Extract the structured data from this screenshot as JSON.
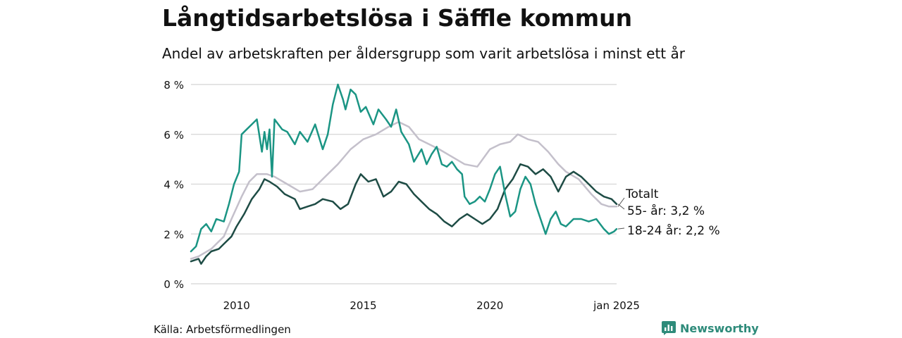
{
  "title": "Långtidsarbetslösa i Säffle kommun",
  "subtitle": "Andel av arbetskraften per åldersgrupp som varit arbetslösa i minst ett år",
  "source": "Källa: Arbetsförmedlingen",
  "brand": {
    "name": "Newsworthy",
    "icon": "newsworthy-logo-icon",
    "color": "#2e8b7a"
  },
  "chart_data": {
    "type": "line",
    "title": "Långtidsarbetslösa i Säffle kommun",
    "xlabel": "",
    "ylabel": "",
    "xlim": [
      2008.2,
      2025.0
    ],
    "ylim": [
      0,
      8
    ],
    "yticks": [
      {
        "value": 0,
        "label": "0 %"
      },
      {
        "value": 2,
        "label": "2 %"
      },
      {
        "value": 4,
        "label": "4 %"
      },
      {
        "value": 6,
        "label": "6 %"
      },
      {
        "value": 8,
        "label": "8 %"
      }
    ],
    "xticks": [
      {
        "value": 2010,
        "label": "2010"
      },
      {
        "value": 2015,
        "label": "2015"
      },
      {
        "value": 2020,
        "label": "2020"
      },
      {
        "value": 2025,
        "label": "jan 2025"
      }
    ],
    "grid": true,
    "series": [
      {
        "name": "Totalt",
        "label": "Totalt",
        "color": "#c4c0cb",
        "points": [
          [
            2008.2,
            1.0
          ],
          [
            2008.5,
            1.1
          ],
          [
            2009.0,
            1.4
          ],
          [
            2009.5,
            1.9
          ],
          [
            2009.8,
            2.6
          ],
          [
            2010.2,
            3.5
          ],
          [
            2010.5,
            4.1
          ],
          [
            2010.8,
            4.4
          ],
          [
            2011.2,
            4.4
          ],
          [
            2011.5,
            4.3
          ],
          [
            2012.0,
            4.0
          ],
          [
            2012.5,
            3.7
          ],
          [
            2013.0,
            3.8
          ],
          [
            2013.5,
            4.3
          ],
          [
            2014.0,
            4.8
          ],
          [
            2014.5,
            5.4
          ],
          [
            2015.0,
            5.8
          ],
          [
            2015.5,
            6.0
          ],
          [
            2016.0,
            6.3
          ],
          [
            2016.4,
            6.5
          ],
          [
            2016.8,
            6.3
          ],
          [
            2017.2,
            5.8
          ],
          [
            2017.6,
            5.6
          ],
          [
            2018.0,
            5.4
          ],
          [
            2018.5,
            5.1
          ],
          [
            2019.0,
            4.8
          ],
          [
            2019.5,
            4.7
          ],
          [
            2020.0,
            5.4
          ],
          [
            2020.4,
            5.6
          ],
          [
            2020.8,
            5.7
          ],
          [
            2021.1,
            6.0
          ],
          [
            2021.5,
            5.8
          ],
          [
            2021.9,
            5.7
          ],
          [
            2022.3,
            5.3
          ],
          [
            2022.7,
            4.8
          ],
          [
            2023.0,
            4.5
          ],
          [
            2023.5,
            4.2
          ],
          [
            2024.0,
            3.6
          ],
          [
            2024.4,
            3.2
          ],
          [
            2024.7,
            3.1
          ],
          [
            2025.0,
            3.1
          ]
        ]
      },
      {
        "name": "55- år",
        "label": "55- år: 3,2 %",
        "color": "#1e4c45",
        "points": [
          [
            2008.2,
            0.9
          ],
          [
            2008.5,
            1.0
          ],
          [
            2008.6,
            0.8
          ],
          [
            2008.8,
            1.1
          ],
          [
            2009.0,
            1.3
          ],
          [
            2009.3,
            1.4
          ],
          [
            2009.5,
            1.6
          ],
          [
            2009.8,
            1.9
          ],
          [
            2010.0,
            2.3
          ],
          [
            2010.3,
            2.8
          ],
          [
            2010.6,
            3.4
          ],
          [
            2010.9,
            3.8
          ],
          [
            2011.1,
            4.2
          ],
          [
            2011.3,
            4.1
          ],
          [
            2011.6,
            3.9
          ],
          [
            2011.9,
            3.6
          ],
          [
            2012.3,
            3.4
          ],
          [
            2012.5,
            3.0
          ],
          [
            2012.8,
            3.1
          ],
          [
            2013.1,
            3.2
          ],
          [
            2013.4,
            3.4
          ],
          [
            2013.8,
            3.3
          ],
          [
            2014.1,
            3.0
          ],
          [
            2014.4,
            3.2
          ],
          [
            2014.7,
            4.0
          ],
          [
            2014.9,
            4.4
          ],
          [
            2015.2,
            4.1
          ],
          [
            2015.5,
            4.2
          ],
          [
            2015.8,
            3.5
          ],
          [
            2016.1,
            3.7
          ],
          [
            2016.4,
            4.1
          ],
          [
            2016.7,
            4.0
          ],
          [
            2017.0,
            3.6
          ],
          [
            2017.3,
            3.3
          ],
          [
            2017.6,
            3.0
          ],
          [
            2017.9,
            2.8
          ],
          [
            2018.2,
            2.5
          ],
          [
            2018.5,
            2.3
          ],
          [
            2018.8,
            2.6
          ],
          [
            2019.1,
            2.8
          ],
          [
            2019.4,
            2.6
          ],
          [
            2019.7,
            2.4
          ],
          [
            2020.0,
            2.6
          ],
          [
            2020.3,
            3.0
          ],
          [
            2020.6,
            3.8
          ],
          [
            2020.9,
            4.2
          ],
          [
            2021.2,
            4.8
          ],
          [
            2021.5,
            4.7
          ],
          [
            2021.8,
            4.4
          ],
          [
            2022.1,
            4.6
          ],
          [
            2022.4,
            4.3
          ],
          [
            2022.7,
            3.7
          ],
          [
            2023.0,
            4.3
          ],
          [
            2023.3,
            4.5
          ],
          [
            2023.6,
            4.3
          ],
          [
            2023.9,
            4.0
          ],
          [
            2024.2,
            3.7
          ],
          [
            2024.5,
            3.5
          ],
          [
            2024.8,
            3.4
          ],
          [
            2025.0,
            3.2
          ]
        ]
      },
      {
        "name": "18-24 år",
        "label": "18-24 år: 2,2 %",
        "color": "#1b9584",
        "points": [
          [
            2008.2,
            1.3
          ],
          [
            2008.4,
            1.5
          ],
          [
            2008.6,
            2.2
          ],
          [
            2008.8,
            2.4
          ],
          [
            2009.0,
            2.1
          ],
          [
            2009.2,
            2.6
          ],
          [
            2009.5,
            2.5
          ],
          [
            2009.7,
            3.2
          ],
          [
            2009.9,
            4.0
          ],
          [
            2010.1,
            4.5
          ],
          [
            2010.2,
            6.0
          ],
          [
            2010.4,
            6.2
          ],
          [
            2010.6,
            6.4
          ],
          [
            2010.8,
            6.6
          ],
          [
            2011.0,
            5.3
          ],
          [
            2011.1,
            6.1
          ],
          [
            2011.2,
            5.4
          ],
          [
            2011.3,
            6.2
          ],
          [
            2011.4,
            4.3
          ],
          [
            2011.5,
            6.6
          ],
          [
            2011.8,
            6.2
          ],
          [
            2012.0,
            6.1
          ],
          [
            2012.3,
            5.6
          ],
          [
            2012.5,
            6.1
          ],
          [
            2012.8,
            5.7
          ],
          [
            2013.1,
            6.4
          ],
          [
            2013.4,
            5.4
          ],
          [
            2013.6,
            6.0
          ],
          [
            2013.8,
            7.2
          ],
          [
            2014.0,
            8.0
          ],
          [
            2014.2,
            7.4
          ],
          [
            2014.3,
            7.0
          ],
          [
            2014.5,
            7.8
          ],
          [
            2014.7,
            7.6
          ],
          [
            2014.9,
            6.9
          ],
          [
            2015.1,
            7.1
          ],
          [
            2015.4,
            6.4
          ],
          [
            2015.6,
            7.0
          ],
          [
            2015.9,
            6.6
          ],
          [
            2016.1,
            6.3
          ],
          [
            2016.3,
            7.0
          ],
          [
            2016.5,
            6.1
          ],
          [
            2016.8,
            5.6
          ],
          [
            2017.0,
            4.9
          ],
          [
            2017.3,
            5.4
          ],
          [
            2017.5,
            4.8
          ],
          [
            2017.7,
            5.2
          ],
          [
            2017.9,
            5.5
          ],
          [
            2018.1,
            4.8
          ],
          [
            2018.3,
            4.7
          ],
          [
            2018.5,
            4.9
          ],
          [
            2018.7,
            4.6
          ],
          [
            2018.9,
            4.4
          ],
          [
            2019.0,
            3.5
          ],
          [
            2019.2,
            3.2
          ],
          [
            2019.4,
            3.3
          ],
          [
            2019.6,
            3.5
          ],
          [
            2019.8,
            3.3
          ],
          [
            2020.0,
            3.8
          ],
          [
            2020.2,
            4.4
          ],
          [
            2020.4,
            4.7
          ],
          [
            2020.6,
            3.6
          ],
          [
            2020.8,
            2.7
          ],
          [
            2021.0,
            2.9
          ],
          [
            2021.2,
            3.8
          ],
          [
            2021.4,
            4.3
          ],
          [
            2021.6,
            4.0
          ],
          [
            2021.8,
            3.2
          ],
          [
            2022.0,
            2.6
          ],
          [
            2022.2,
            2.0
          ],
          [
            2022.4,
            2.6
          ],
          [
            2022.6,
            2.9
          ],
          [
            2022.8,
            2.4
          ],
          [
            2023.0,
            2.3
          ],
          [
            2023.3,
            2.6
          ],
          [
            2023.6,
            2.6
          ],
          [
            2023.9,
            2.5
          ],
          [
            2024.2,
            2.6
          ],
          [
            2024.5,
            2.2
          ],
          [
            2024.7,
            2.0
          ],
          [
            2024.9,
            2.1
          ],
          [
            2025.0,
            2.2
          ]
        ]
      }
    ]
  }
}
